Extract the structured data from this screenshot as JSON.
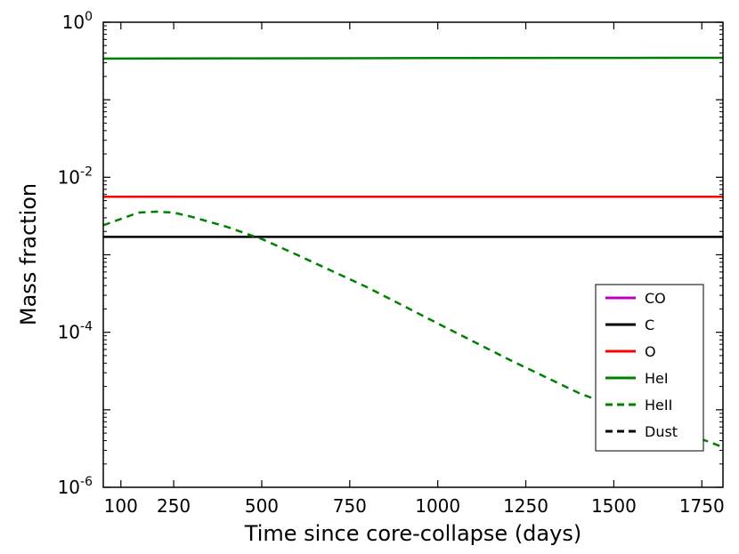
{
  "chart_data": {
    "type": "line",
    "xlabel": "Time since core-collapse (days)",
    "ylabel": "Mass fraction",
    "xlim": [
      50,
      1810
    ],
    "ylim_log10": [
      -6,
      0
    ],
    "y_scale": "log",
    "grid": false,
    "legend_position": "lower-right",
    "x_ticks": [
      100,
      250,
      500,
      750,
      1000,
      1250,
      1500,
      1750
    ],
    "y_ticks": [
      {
        "base": "10",
        "exp": "0",
        "value": 1
      },
      {
        "base": "10",
        "exp": "-2",
        "value": 0.01
      },
      {
        "base": "10",
        "exp": "-4",
        "value": 0.0001
      },
      {
        "base": "10",
        "exp": "-6",
        "value": 1e-06
      }
    ],
    "series": [
      {
        "name": "CO",
        "color": "#bf00bf",
        "style": "solid",
        "x": [],
        "y": []
      },
      {
        "name": "C",
        "color": "#000000",
        "style": "solid",
        "x": [
          50,
          1810
        ],
        "y": [
          0.0017,
          0.0017
        ]
      },
      {
        "name": "O",
        "color": "#ff0000",
        "style": "solid",
        "x": [
          50,
          1810
        ],
        "y": [
          0.0056,
          0.0056
        ]
      },
      {
        "name": "HeI",
        "color": "#008000",
        "style": "solid",
        "x": [
          50,
          500,
          1000,
          1500,
          1810
        ],
        "y": [
          0.34,
          0.342,
          0.345,
          0.347,
          0.348
        ]
      },
      {
        "name": "HeII",
        "color": "#008000",
        "style": "dashed",
        "x": [
          50,
          100,
          150,
          200,
          250,
          300,
          400,
          500,
          600,
          800,
          1000,
          1200,
          1400,
          1600,
          1810
        ],
        "y": [
          0.0024,
          0.0029,
          0.0035,
          0.0036,
          0.0035,
          0.0031,
          0.0023,
          0.0016,
          0.001,
          0.00038,
          0.00013,
          4.5e-05,
          1.65e-05,
          7.5e-06,
          3.3e-06
        ]
      },
      {
        "name": "Dust",
        "color": "#000000",
        "style": "dashed",
        "x": [],
        "y": []
      }
    ]
  }
}
